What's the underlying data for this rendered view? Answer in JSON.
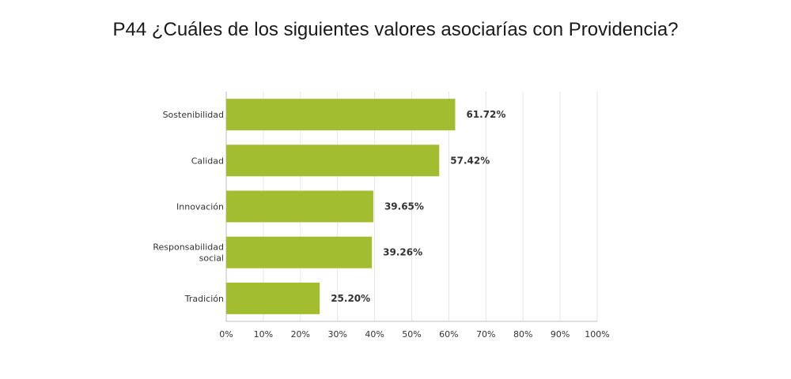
{
  "chart_data": {
    "type": "bar",
    "orientation": "horizontal",
    "title": "P44 ¿Cuáles de los siguientes valores asociarías con Providencia?",
    "categories": [
      [
        "Sostenibilidad"
      ],
      [
        "Calidad"
      ],
      [
        "Innovación"
      ],
      [
        "Responsabilidad",
        "social"
      ],
      [
        "Tradición"
      ]
    ],
    "values": [
      61.72,
      57.42,
      39.65,
      39.26,
      25.2
    ],
    "value_labels": [
      "61.72%",
      "57.42%",
      "39.65%",
      "39.26%",
      "25.20%"
    ],
    "xlim": [
      0,
      100
    ],
    "xticks": [
      "0%",
      "10%",
      "20%",
      "30%",
      "40%",
      "50%",
      "60%",
      "70%",
      "80%",
      "90%",
      "100%"
    ],
    "grid": true,
    "colors": {
      "bar": "#a3bd31",
      "grid": "#e6e6e6",
      "axis": "#bfbfbf"
    }
  }
}
